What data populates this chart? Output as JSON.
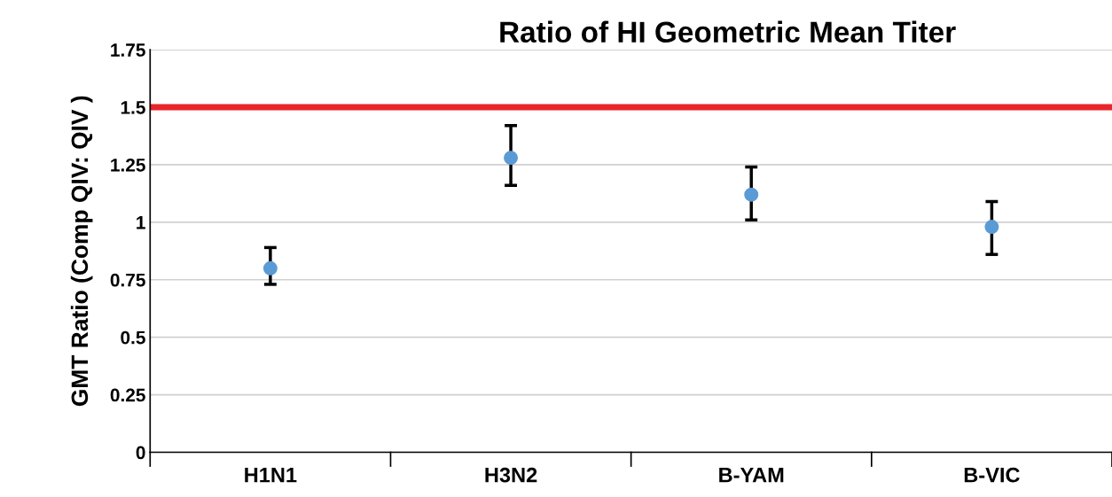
{
  "chart_data": {
    "type": "scatter",
    "title": "Ratio of HI Geometric Mean Titer",
    "ylabel": "GMT Ratio (Comp QIV: QIV )",
    "categories": [
      "H1N1",
      "H3N2",
      "B-YAM",
      "B-VIC"
    ],
    "values": [
      0.8,
      1.28,
      1.12,
      0.98
    ],
    "errors": [
      [
        0.73,
        0.89
      ],
      [
        1.16,
        1.42
      ],
      [
        1.01,
        1.24
      ],
      [
        0.86,
        1.09
      ]
    ],
    "color": "#5b9bd5",
    "marker": "circle",
    "ylim": [
      0,
      1.75
    ],
    "yticks": [
      0,
      {
        "value": 0.25,
        "label": "0.25"
      },
      {
        "value": 0.5,
        "label": "0.5"
      },
      {
        "value": 0.75,
        "label": "0.75"
      },
      1,
      {
        "value": 1.25,
        "label": "1.25"
      },
      {
        "value": 1.5,
        "label": "1.5"
      },
      {
        "value": 1.75,
        "label": "1.75"
      }
    ],
    "grid": "y",
    "ref_lines": [
      {
        "axis": "y",
        "value": 1.5,
        "color": "#e8262b"
      }
    ]
  }
}
